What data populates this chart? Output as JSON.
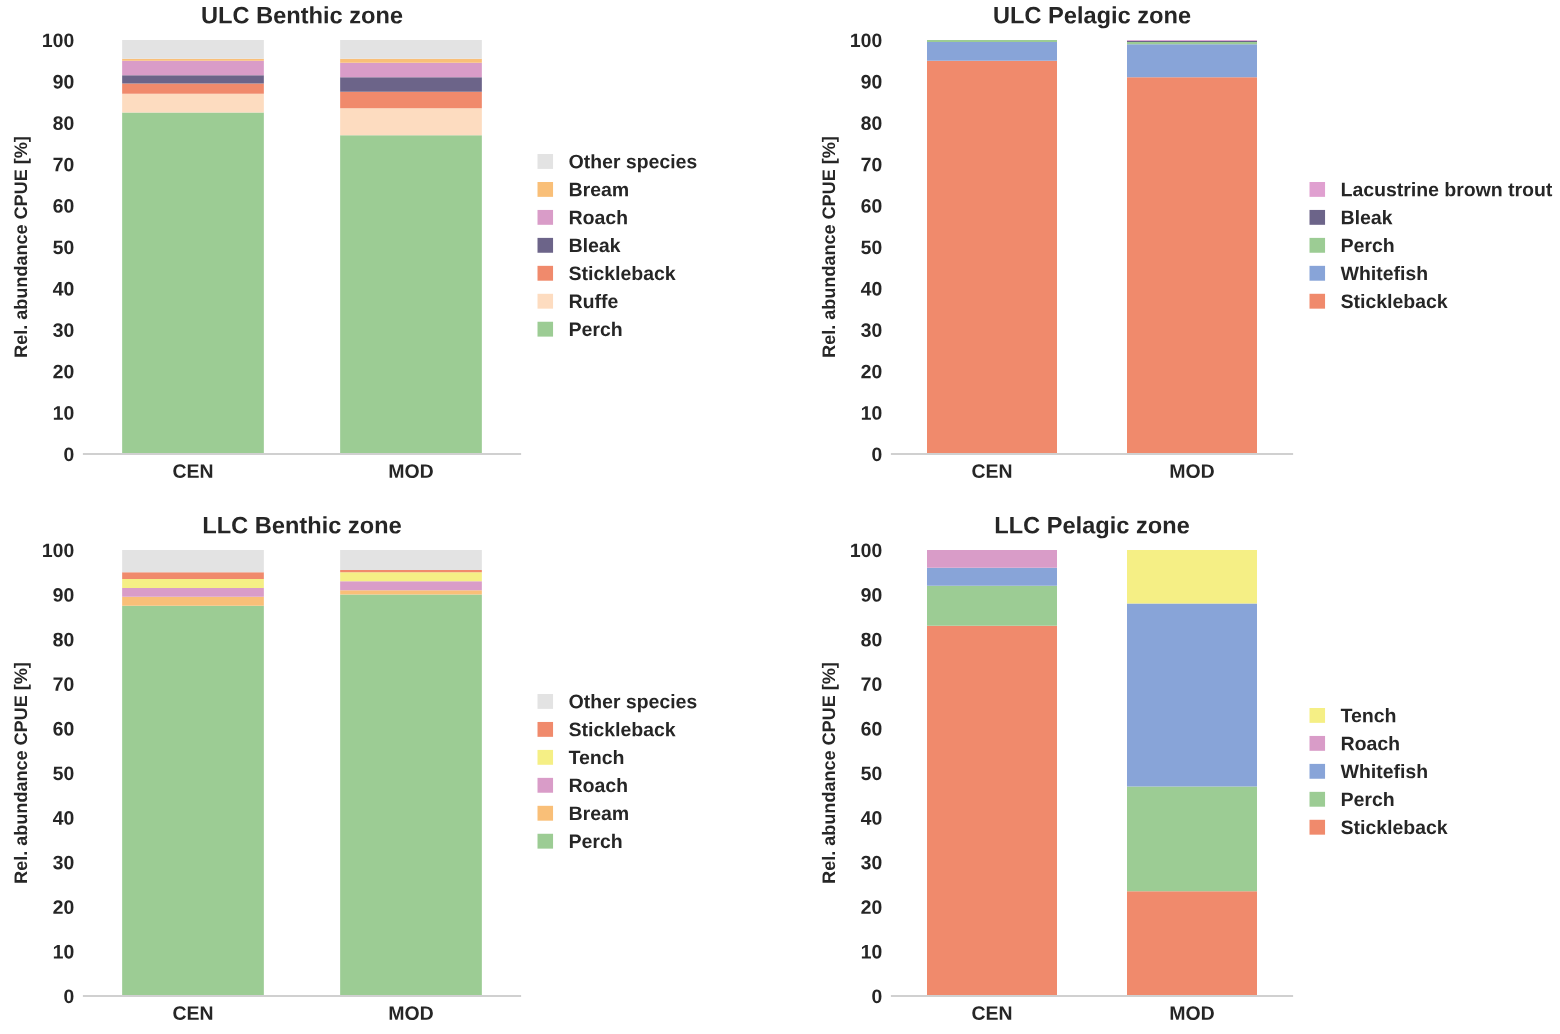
{
  "chart_data": [
    {
      "type": "bar",
      "title": "ULC Benthic zone",
      "ylabel": "Rel. abundance CPUE [%]",
      "categories": [
        "CEN",
        "MOD"
      ],
      "stacked": true,
      "ylim": [
        0,
        100
      ],
      "yticks": [
        0,
        10,
        20,
        30,
        40,
        50,
        60,
        70,
        80,
        90,
        100
      ],
      "grid": false,
      "legend": "right",
      "series": [
        {
          "name": "Perch",
          "color": "#9ccc94",
          "values": [
            82.5,
            77
          ]
        },
        {
          "name": "Ruffe",
          "color": "#fddcc0",
          "values": [
            4.5,
            6.5
          ]
        },
        {
          "name": "Stickleback",
          "color": "#f08a6c",
          "values": [
            2.5,
            4
          ]
        },
        {
          "name": "Bleak",
          "color": "#6c6489",
          "values": [
            2,
            3.5
          ]
        },
        {
          "name": "Roach",
          "color": "#d99cc8",
          "values": [
            3.5,
            3.5
          ]
        },
        {
          "name": "Bream",
          "color": "#f9bf78",
          "values": [
            0.5,
            1
          ]
        },
        {
          "name": "Other species",
          "color": "#e3e3e3",
          "values": [
            4.5,
            4.5
          ]
        }
      ]
    },
    {
      "type": "bar",
      "title": "ULC Pelagic zone",
      "ylabel": "Rel. abundance CPUE [%]",
      "categories": [
        "CEN",
        "MOD"
      ],
      "stacked": true,
      "ylim": [
        0,
        100
      ],
      "yticks": [
        0,
        10,
        20,
        30,
        40,
        50,
        60,
        70,
        80,
        90,
        100
      ],
      "grid": false,
      "legend": "right",
      "series": [
        {
          "name": "Stickleback",
          "color": "#f08a6c",
          "values": [
            95,
            91
          ]
        },
        {
          "name": "Whitefish",
          "color": "#88a4d8",
          "values": [
            4.5,
            8
          ]
        },
        {
          "name": "Perch",
          "color": "#9ccc94",
          "values": [
            0.5,
            0.5
          ]
        },
        {
          "name": "Bleak",
          "color": "#6c6489",
          "values": [
            0,
            0.3
          ]
        },
        {
          "name": "Lacustrine brown trout",
          "color": "#e0a0d0",
          "values": [
            0,
            0.2
          ]
        }
      ]
    },
    {
      "type": "bar",
      "title": "LLC Benthic zone",
      "ylabel": "Rel. abundance CPUE [%]",
      "categories": [
        "CEN",
        "MOD"
      ],
      "stacked": true,
      "ylim": [
        0,
        100
      ],
      "yticks": [
        0,
        10,
        20,
        30,
        40,
        50,
        60,
        70,
        80,
        90,
        100
      ],
      "grid": false,
      "legend": "right",
      "series": [
        {
          "name": "Perch",
          "color": "#9ccc94",
          "values": [
            87.5,
            90
          ]
        },
        {
          "name": "Bream",
          "color": "#f9bf78",
          "values": [
            2,
            1
          ]
        },
        {
          "name": "Roach",
          "color": "#d99cc8",
          "values": [
            2,
            2
          ]
        },
        {
          "name": "Tench",
          "color": "#f5ef85",
          "values": [
            2,
            2
          ]
        },
        {
          "name": "Stickleback",
          "color": "#f08a6c",
          "values": [
            1.5,
            0.5
          ]
        },
        {
          "name": "Other species",
          "color": "#e3e3e3",
          "values": [
            5,
            4.5
          ]
        }
      ]
    },
    {
      "type": "bar",
      "title": "LLC Pelagic zone",
      "ylabel": "Rel. abundance CPUE [%]",
      "categories": [
        "CEN",
        "MOD"
      ],
      "stacked": true,
      "ylim": [
        0,
        100
      ],
      "yticks": [
        0,
        10,
        20,
        30,
        40,
        50,
        60,
        70,
        80,
        90,
        100
      ],
      "grid": false,
      "legend": "right",
      "series": [
        {
          "name": "Stickleback",
          "color": "#f08a6c",
          "values": [
            83,
            23.5
          ]
        },
        {
          "name": "Perch",
          "color": "#9ccc94",
          "values": [
            9,
            23.5
          ]
        },
        {
          "name": "Whitefish",
          "color": "#88a4d8",
          "values": [
            4,
            41
          ]
        },
        {
          "name": "Roach",
          "color": "#d99cc8",
          "values": [
            4,
            0
          ]
        },
        {
          "name": "Tench",
          "color": "#f5ef85",
          "values": [
            0,
            12
          ]
        }
      ]
    }
  ]
}
